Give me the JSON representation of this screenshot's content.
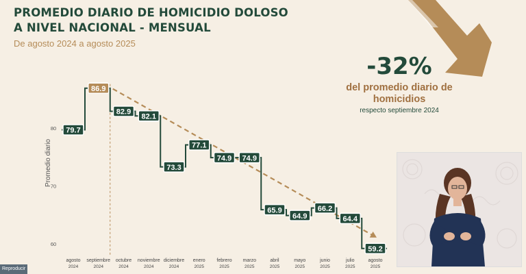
{
  "header": {
    "title_line1": "PROMEDIO DIARIO DE HOMICIDIO DOLOSO",
    "title_line2": "A NIVEL NACIONAL - MENSUAL",
    "subtitle": "De agosto 2024 a agosto 2025"
  },
  "stat": {
    "value": "-32%",
    "label": "del promedio diario de homicidios",
    "sublabel": "respecto septiembre 2024"
  },
  "video": {
    "play_label": "Reproducir"
  },
  "colors": {
    "primary": "#234a3a",
    "accent": "#b58c58",
    "background": "#f6efe4"
  },
  "chart_data": {
    "type": "line",
    "style": "step",
    "ylabel": "Promedio diario",
    "ylim": [
      58,
      88
    ],
    "yticks": [
      60,
      70,
      80
    ],
    "categories": [
      [
        "agosto",
        "2024"
      ],
      [
        "septiembre",
        "2024"
      ],
      [
        "octubre",
        "2024"
      ],
      [
        "noviembre",
        "2024"
      ],
      [
        "diciembre",
        "2024"
      ],
      [
        "enero",
        "2025"
      ],
      [
        "febrero",
        "2025"
      ],
      [
        "marzo",
        "2025"
      ],
      [
        "abril",
        "2025"
      ],
      [
        "mayo",
        "2025"
      ],
      [
        "junio",
        "2025"
      ],
      [
        "julio",
        "2025"
      ],
      [
        "agosto",
        "2025"
      ]
    ],
    "series": [
      {
        "values": [
          79.7,
          86.9,
          82.9,
          82.1,
          73.3,
          77.1,
          74.9,
          74.9,
          65.9,
          64.9,
          66.2,
          64.4,
          59.2
        ]
      }
    ],
    "highlight_index": 1,
    "trend": {
      "from_index": 1,
      "to_index": 12
    },
    "grid": false
  }
}
